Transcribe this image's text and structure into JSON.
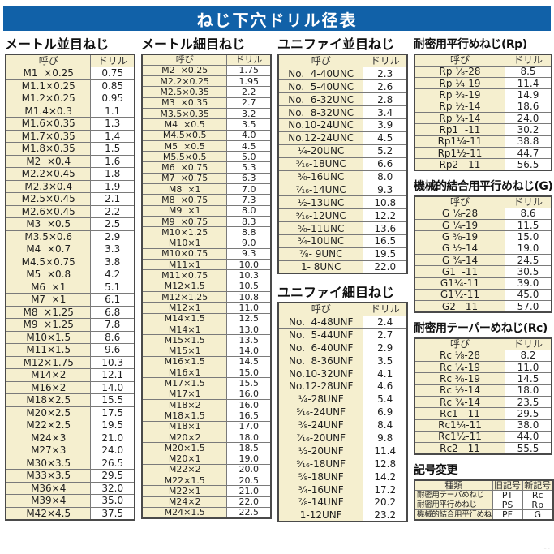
{
  "title": "ねじ下穴ドリル径表",
  "corner_mark": "--",
  "colors": {
    "title_bar": "#1161a8",
    "cell_cream": "#f5efcf"
  },
  "tables": {
    "metric_coarse": {
      "title": "メートル並目ねじ",
      "headers": [
        "呼び",
        "ドリル"
      ],
      "rows": [
        [
          "M1  ×0.25",
          "0.75"
        ],
        [
          "M1.1×0.25",
          "0.85"
        ],
        [
          "M1.2×0.25",
          "0.95"
        ],
        [
          "M1.4×0.3",
          "1.1"
        ],
        [
          "M1.6×0.35",
          "1.3"
        ],
        [
          "M1.7×0.35",
          "1.4"
        ],
        [
          "M1.8×0.35",
          "1.5"
        ],
        [
          "M2  ×0.4",
          "1.6"
        ],
        [
          "M2.2×0.45",
          "1.8"
        ],
        [
          "M2.3×0.4",
          "1.9"
        ],
        [
          "M2.5×0.45",
          "2.1"
        ],
        [
          "M2.6×0.45",
          "2.2"
        ],
        [
          "M3  ×0.5",
          "2.5"
        ],
        [
          "M3.5×0.6",
          "2.9"
        ],
        [
          "M4  ×0.7",
          "3.3"
        ],
        [
          "M4.5×0.75",
          "3.8"
        ],
        [
          "M5  ×0.8",
          "4.2"
        ],
        [
          "M6  ×1",
          "5.1"
        ],
        [
          "M7  ×1",
          "6.1"
        ],
        [
          "M8  ×1.25",
          "6.8"
        ],
        [
          "M9  ×1.25",
          "7.8"
        ],
        [
          "M10×1.5",
          "8.6"
        ],
        [
          "M11×1.5",
          "9.6"
        ],
        [
          "M12×1.75",
          "10.3"
        ],
        [
          "M14×2",
          "12.1"
        ],
        [
          "M16×2",
          "14.0"
        ],
        [
          "M18×2.5",
          "15.5"
        ],
        [
          "M20×2.5",
          "17.5"
        ],
        [
          "M22×2.5",
          "19.5"
        ],
        [
          "M24×3",
          "21.0"
        ],
        [
          "M27×3",
          "24.0"
        ],
        [
          "M30×3.5",
          "26.5"
        ],
        [
          "M33×3.5",
          "29.5"
        ],
        [
          "M36×4",
          "32.0"
        ],
        [
          "M39×4",
          "35.0"
        ],
        [
          "M42×4.5",
          "37.5"
        ]
      ]
    },
    "metric_fine": {
      "title": "メートル細目ねじ",
      "headers": [
        "呼び",
        "ドリル"
      ],
      "rows": [
        [
          "M2  ×0.25",
          "1.75"
        ],
        [
          "M2.2×0.25",
          "1.95"
        ],
        [
          "M2.5×0.35",
          "2.2"
        ],
        [
          "M3  ×0.35",
          "2.7"
        ],
        [
          "M3.5×0.35",
          "3.2"
        ],
        [
          "M4  ×0.5",
          "3.5"
        ],
        [
          "M4.5×0.5",
          "4.0"
        ],
        [
          "M5  ×0.5",
          "4.5"
        ],
        [
          "M5.5×0.5",
          "5.0"
        ],
        [
          "M6  ×0.75",
          "5.3"
        ],
        [
          "M7  ×0.75",
          "6.3"
        ],
        [
          "M8  ×1",
          "7.0"
        ],
        [
          "M8  ×0.75",
          "7.3"
        ],
        [
          "M9  ×1",
          "8.0"
        ],
        [
          "M9  ×0.75",
          "8.3"
        ],
        [
          "M10×1.25",
          "8.8"
        ],
        [
          "M10×1",
          "9.0"
        ],
        [
          "M10×0.75",
          "9.3"
        ],
        [
          "M11×1",
          "10.0"
        ],
        [
          "M11×0.75",
          "10.3"
        ],
        [
          "M12×1.5",
          "10.5"
        ],
        [
          "M12×1.25",
          "10.8"
        ],
        [
          "M12×1",
          "11.0"
        ],
        [
          "M14×1.5",
          "12.5"
        ],
        [
          "M14×1",
          "13.0"
        ],
        [
          "M15×1.5",
          "13.5"
        ],
        [
          "M15×1",
          "14.0"
        ],
        [
          "M16×1.5",
          "14.5"
        ],
        [
          "M16×1",
          "15.0"
        ],
        [
          "M17×1.5",
          "15.5"
        ],
        [
          "M17×1",
          "16.0"
        ],
        [
          "M18×2",
          "16.0"
        ],
        [
          "M18×1.5",
          "16.5"
        ],
        [
          "M18×1",
          "17.0"
        ],
        [
          "M20×2",
          "18.0"
        ],
        [
          "M20×1.5",
          "18.5"
        ],
        [
          "M20×1",
          "19.0"
        ],
        [
          "M22×2",
          "20.0"
        ],
        [
          "M22×1.5",
          "20.5"
        ],
        [
          "M22×1",
          "21.0"
        ],
        [
          "M24×2",
          "22.0"
        ],
        [
          "M24×1.5",
          "22.5"
        ]
      ]
    },
    "unified_coarse": {
      "title": "ユニファイ並目ねじ",
      "headers": [
        "呼び",
        "ドリル"
      ],
      "rows": [
        [
          "No.  4-40UNC",
          "2.3"
        ],
        [
          "No.  5-40UNC",
          "2.6"
        ],
        [
          "No.  6-32UNC",
          "2.8"
        ],
        [
          "No.  8-32UNC",
          "3.4"
        ],
        [
          "No.10-24UNC",
          "3.9"
        ],
        [
          "No.12-24UNC",
          "4.5"
        ],
        [
          "¹⁄₄-20UNC",
          "5.2"
        ],
        [
          "⁵⁄₁₆-18UNC",
          "6.6"
        ],
        [
          "³⁄₈-16UNC",
          "8.0"
        ],
        [
          "⁷⁄₁₆-14UNC",
          "9.3"
        ],
        [
          "¹⁄₂-13UNC",
          "10.8"
        ],
        [
          "⁹⁄₁₆-12UNC",
          "12.2"
        ],
        [
          "⁵⁄₈-11UNC",
          "13.6"
        ],
        [
          "³⁄₄-10UNC",
          "16.5"
        ],
        [
          "⁷⁄₈- 9UNC",
          "19.5"
        ],
        [
          "1- 8UNC",
          "22.0"
        ]
      ]
    },
    "unified_fine": {
      "title": "ユニファイ細目ねじ",
      "headers": [
        "呼び",
        "ドリル"
      ],
      "rows": [
        [
          "No.  4-48UNF",
          "2.4"
        ],
        [
          "No.  5-44UNF",
          "2.7"
        ],
        [
          "No.  6-40UNF",
          "2.9"
        ],
        [
          "No.  8-36UNF",
          "3.5"
        ],
        [
          "No.10-32UNF",
          "4.1"
        ],
        [
          "No.12-28UNF",
          "4.6"
        ],
        [
          "¹⁄₄-28UNF",
          "5.4"
        ],
        [
          "⁵⁄₁₆-24UNF",
          "6.9"
        ],
        [
          "³⁄₈-24UNF",
          "8.4"
        ],
        [
          "⁷⁄₁₆-20UNF",
          "9.8"
        ],
        [
          "¹⁄₂-20UNF",
          "11.4"
        ],
        [
          "⁹⁄₁₆-18UNF",
          "12.8"
        ],
        [
          "⁵⁄₈-18UNF",
          "14.2"
        ],
        [
          "³⁄₄-16UNF",
          "17.2"
        ],
        [
          "⁷⁄₈-14UNF",
          "20.2"
        ],
        [
          "1-12UNF",
          "23.2"
        ]
      ]
    },
    "rp": {
      "title": "耐密用平行めねじ(Rp)",
      "headers": [
        "呼び",
        "ドリル"
      ],
      "rows": [
        [
          "Rp ¹⁄₈-28",
          "8.5"
        ],
        [
          "Rp ¹⁄₄-19",
          "11.4"
        ],
        [
          "Rp ³⁄₈-19",
          "14.9"
        ],
        [
          "Rp ¹⁄₂-14",
          "18.6"
        ],
        [
          "Rp ³⁄₄-14",
          "24.0"
        ],
        [
          "Rp1  -11",
          "30.2"
        ],
        [
          "Rp1¹⁄₄-11",
          "38.8"
        ],
        [
          "Rp1¹⁄₂-11",
          "44.7"
        ],
        [
          "Rp2  -11",
          "56.5"
        ]
      ]
    },
    "g": {
      "title": "機械的結合用平行めねじ(G)",
      "headers": [
        "呼び",
        "ドリル"
      ],
      "rows": [
        [
          "G ¹⁄₈-28",
          "8.6"
        ],
        [
          "G ¹⁄₄-19",
          "11.5"
        ],
        [
          "G ³⁄₈-19",
          "15.0"
        ],
        [
          "G ¹⁄₂-14",
          "19.0"
        ],
        [
          "G ³⁄₄-14",
          "24.5"
        ],
        [
          "G1  -11",
          "30.5"
        ],
        [
          "G1¹⁄₄-11",
          "39.0"
        ],
        [
          "G1¹⁄₂-11",
          "45.0"
        ],
        [
          "G2  -11",
          "57.0"
        ]
      ]
    },
    "rc": {
      "title": "耐密用テーパーめねじ(Rc)",
      "headers": [
        "呼び",
        "ドリル"
      ],
      "rows": [
        [
          "Rc ¹⁄₈-28",
          "8.2"
        ],
        [
          "Rc ¹⁄₄-19",
          "11.0"
        ],
        [
          "Rc ³⁄₈-19",
          "14.5"
        ],
        [
          "Rc ¹⁄₂-14",
          "18.0"
        ],
        [
          "Rc ³⁄₄-14",
          "23.5"
        ],
        [
          "Rc1  -11",
          "29.5"
        ],
        [
          "Rc1¹⁄₄-11",
          "38.0"
        ],
        [
          "Rc1¹⁄₂-11",
          "44.0"
        ],
        [
          "Rc2  -11",
          "55.5"
        ]
      ]
    },
    "symbol_change": {
      "title": "記号変更",
      "headers": [
        "種類",
        "旧記号",
        "新記号"
      ],
      "rows": [
        [
          "耐密用テーパめねじ",
          "PT",
          "Rc"
        ],
        [
          "耐密用平行めねじ",
          "PS",
          "Rp"
        ],
        [
          "機械的結合用平行めねじ",
          "PF",
          "G"
        ]
      ]
    }
  }
}
